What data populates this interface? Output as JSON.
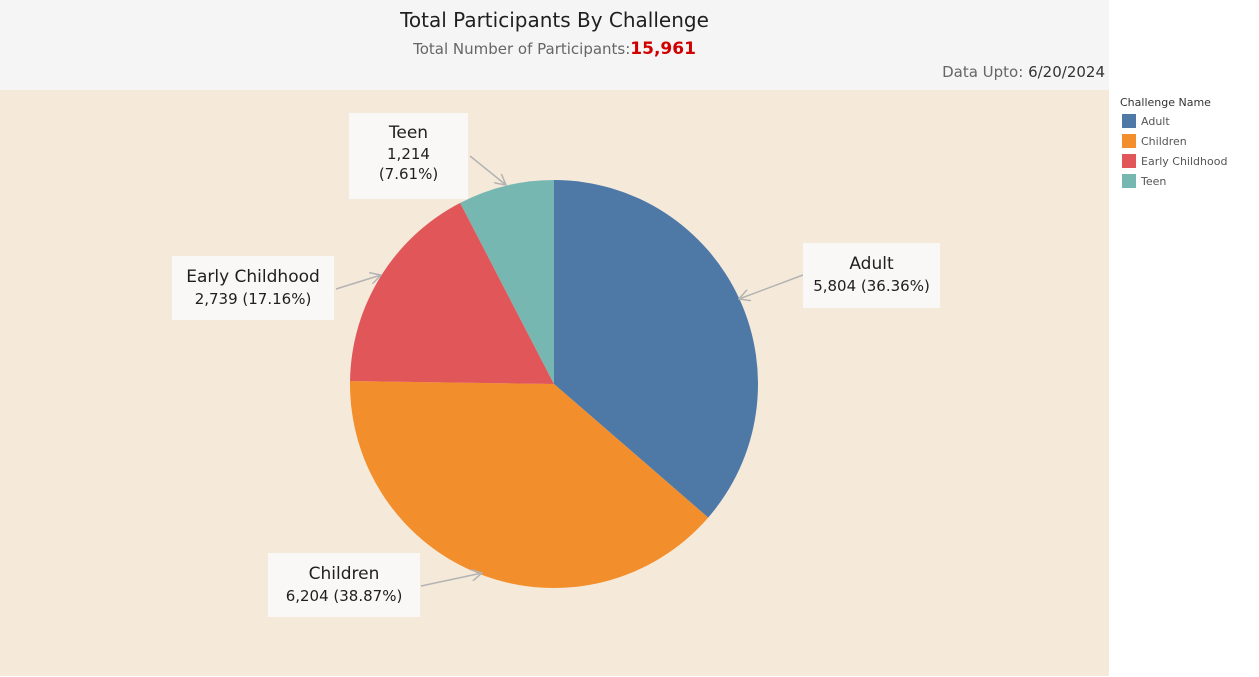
{
  "header": {
    "title": "Total Participants By Challenge",
    "subtitle_label": "Total Number of Participants:",
    "total_value": "15,961",
    "data_upto_label": "Data Upto:",
    "data_upto_date": "6/20/2024"
  },
  "legend": {
    "title": "Challenge Name",
    "items": [
      {
        "label": "Adult",
        "color": "#4e79a7"
      },
      {
        "label": "Children",
        "color": "#f28e2b"
      },
      {
        "label": "Early Childhood",
        "color": "#e15759"
      },
      {
        "label": "Teen",
        "color": "#76b7b2"
      }
    ]
  },
  "callouts": {
    "teen": {
      "name": "Teen",
      "line1": "1,214",
      "line2": "(7.61%)"
    },
    "early": {
      "name": "Early Childhood",
      "line1": "2,739 (17.16%)"
    },
    "adult": {
      "name": "Adult",
      "line1": "5,804 (36.36%)"
    },
    "children": {
      "name": "Children",
      "line1": "6,204 (38.87%)"
    }
  },
  "chart_data": {
    "type": "pie",
    "title": "Total Participants By Challenge",
    "categories": [
      "Adult",
      "Children",
      "Early Childhood",
      "Teen"
    ],
    "values": [
      5804,
      6204,
      2739,
      1214
    ],
    "percentages": [
      36.36,
      38.87,
      17.16,
      7.61
    ],
    "colors": [
      "#4e79a7",
      "#f28e2b",
      "#e15759",
      "#76b7b2"
    ],
    "legend_position": "right"
  }
}
